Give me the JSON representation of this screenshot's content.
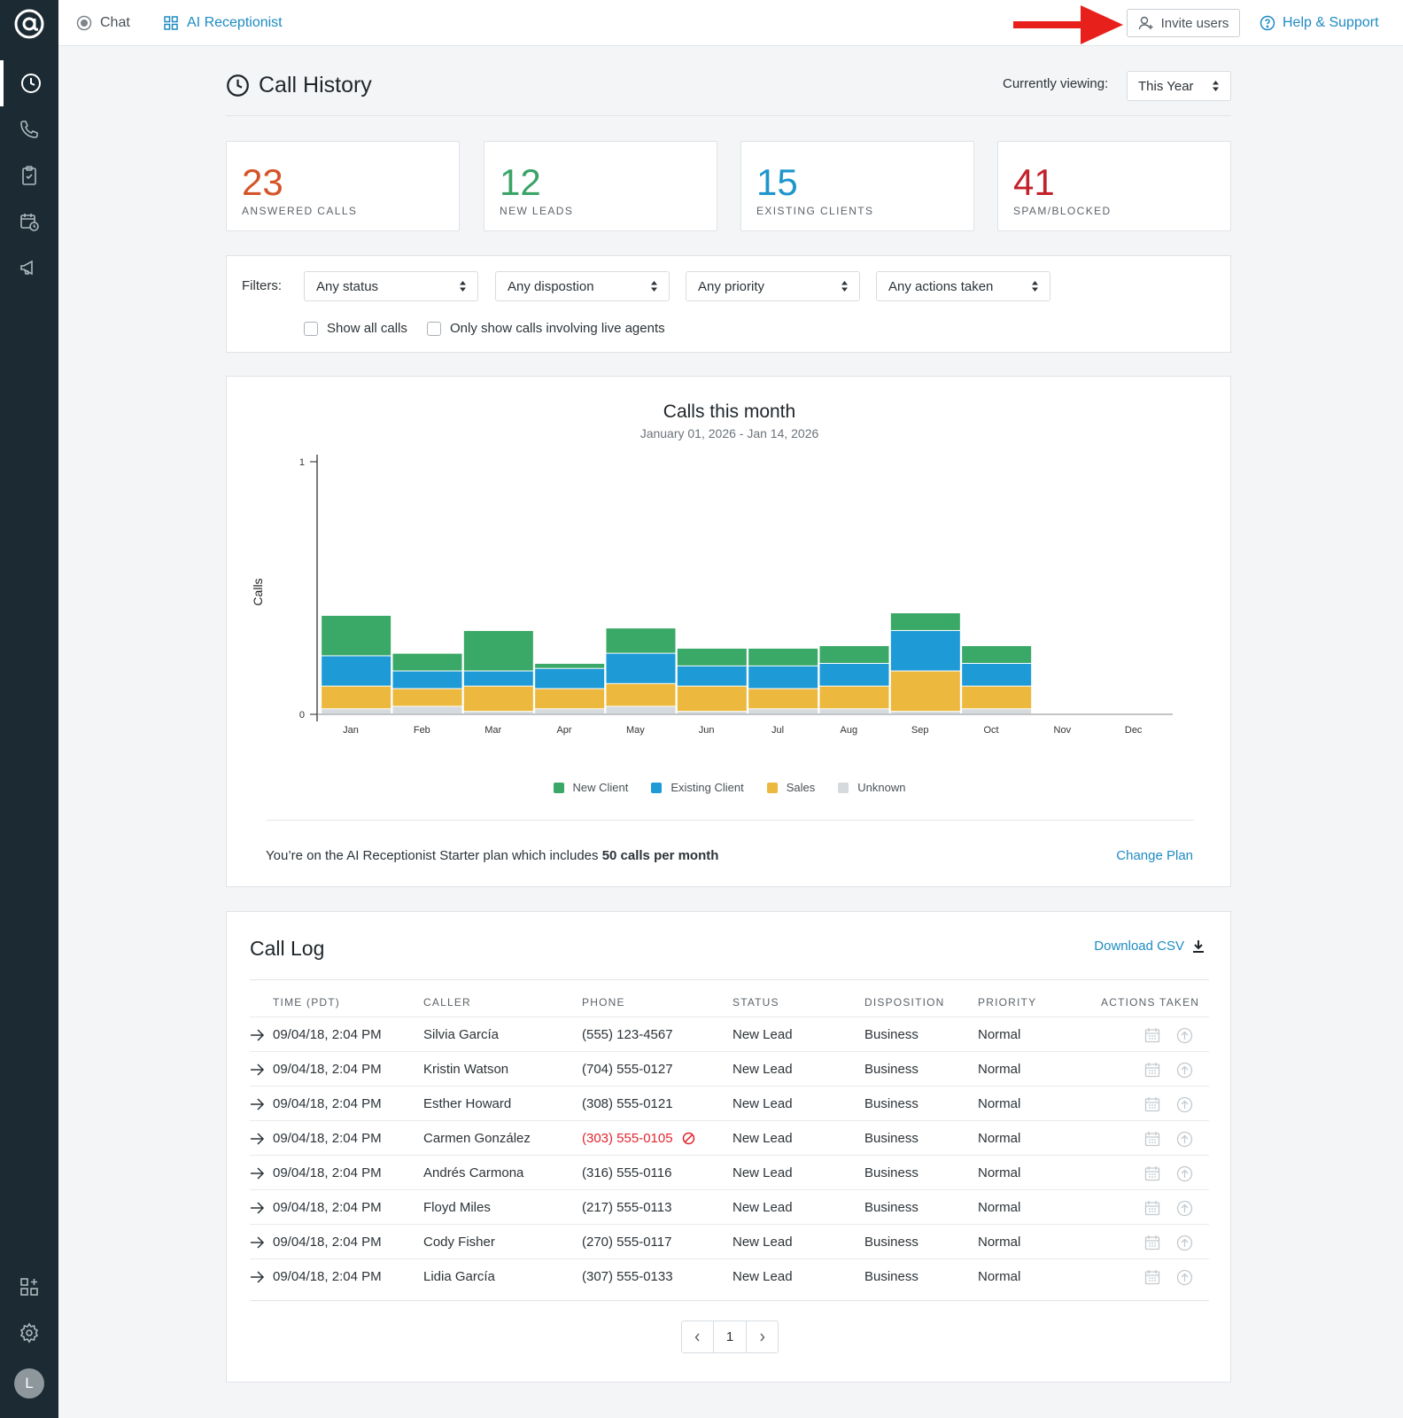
{
  "topbar": {
    "chat_label": "Chat",
    "ai_label": "AI Receptionist",
    "invite_label": "Invite users",
    "help_label": "Help & Support"
  },
  "sidebar": {
    "avatar_initial": "L",
    "items": [
      "clock-icon",
      "phone-icon",
      "clipboard-check-icon",
      "calendar-clock-icon",
      "megaphone-icon",
      "apps-icon",
      "gear-icon"
    ]
  },
  "header": {
    "title": "Call History",
    "viewing_label": "Currently viewing:",
    "viewing_value": "This Year"
  },
  "stats": [
    {
      "value": "23",
      "label": "ANSWERED CALLS",
      "color": "#d4542a"
    },
    {
      "value": "12",
      "label": "NEW LEADS",
      "color": "#3aa466"
    },
    {
      "value": "15",
      "label": "EXISTING CLIENTS",
      "color": "#1e95cc"
    },
    {
      "value": "41",
      "label": "SPAM/BLOCKED",
      "color": "#c4222a"
    }
  ],
  "filters": {
    "label": "Filters:",
    "selects": [
      "Any status",
      "Any dispostion",
      "Any priority",
      "Any actions taken"
    ],
    "checkboxes": [
      "Show all calls",
      "Only show calls involving live agents"
    ]
  },
  "chart_data": {
    "type": "bar",
    "stacked": true,
    "title": "Calls this month",
    "subtitle": "January 01, 2026 - Jan 14, 2026",
    "ylabel": "Calls",
    "xlabel": "",
    "ylim": [
      0,
      1
    ],
    "yticks": [
      "0",
      "1"
    ],
    "categories": [
      "Jan",
      "Feb",
      "Mar",
      "Apr",
      "May",
      "Jun",
      "Jul",
      "Aug",
      "Sep",
      "Oct",
      "Nov",
      "Dec"
    ],
    "series": [
      {
        "name": "Unknown",
        "color": "#d5dade",
        "values": [
          0.02,
          0.03,
          0.01,
          0.02,
          0.03,
          0.01,
          0.02,
          0.02,
          0.01,
          0.02,
          0.0,
          0.0
        ]
      },
      {
        "name": "Sales",
        "color": "#ecb83d",
        "values": [
          0.09,
          0.07,
          0.1,
          0.08,
          0.09,
          0.1,
          0.08,
          0.09,
          0.16,
          0.09,
          0.0,
          0.0
        ]
      },
      {
        "name": "Existing Client",
        "color": "#1e9bd7",
        "values": [
          0.12,
          0.07,
          0.06,
          0.08,
          0.12,
          0.08,
          0.09,
          0.09,
          0.16,
          0.09,
          0.0,
          0.0
        ]
      },
      {
        "name": "New Client",
        "color": "#3aa866",
        "values": [
          0.16,
          0.07,
          0.16,
          0.02,
          0.1,
          0.07,
          0.07,
          0.07,
          0.07,
          0.07,
          0.0,
          0.0
        ]
      }
    ],
    "legend": [
      "New Client",
      "Existing Client",
      "Sales",
      "Unknown"
    ],
    "legend_position": "bottom",
    "grid": false
  },
  "plan": {
    "text": "You’re on the AI Receptionist Starter plan which includes ",
    "bold": "50 calls per month",
    "change_label": "Change Plan"
  },
  "log": {
    "title": "Call Log",
    "download_label": "Download CSV",
    "columns": [
      "TIME (PDT)",
      "CALLER",
      "PHONE",
      "STATUS",
      "DISPOSITION",
      "PRIORITY",
      "ACTIONS TAKEN"
    ],
    "rows": [
      {
        "time": "09/04/18, 2:04 PM",
        "caller": "Silvia García",
        "phone": "(555) 123-4567",
        "status": "New Lead",
        "disposition": "Business",
        "priority": "Normal",
        "blocked": false
      },
      {
        "time": "09/04/18, 2:04 PM",
        "caller": "Kristin Watson",
        "phone": "(704) 555-0127",
        "status": "New Lead",
        "disposition": "Business",
        "priority": "Normal",
        "blocked": false
      },
      {
        "time": "09/04/18, 2:04 PM",
        "caller": "Esther Howard",
        "phone": "(308) 555-0121",
        "status": "New Lead",
        "disposition": "Business",
        "priority": "Normal",
        "blocked": false
      },
      {
        "time": "09/04/18, 2:04 PM",
        "caller": "Carmen González",
        "phone": "(303) 555-0105",
        "status": "New Lead",
        "disposition": "Business",
        "priority": "Normal",
        "blocked": true
      },
      {
        "time": "09/04/18, 2:04 PM",
        "caller": "Andrés Carmona",
        "phone": "(316) 555-0116",
        "status": "New Lead",
        "disposition": "Business",
        "priority": "Normal",
        "blocked": false
      },
      {
        "time": "09/04/18, 2:04 PM",
        "caller": "Floyd Miles",
        "phone": "(217) 555-0113",
        "status": "New Lead",
        "disposition": "Business",
        "priority": "Normal",
        "blocked": false
      },
      {
        "time": "09/04/18, 2:04 PM",
        "caller": "Cody Fisher",
        "phone": "(270) 555-0117",
        "status": "New Lead",
        "disposition": "Business",
        "priority": "Normal",
        "blocked": false
      },
      {
        "time": "09/04/18, 2:04 PM",
        "caller": "Lidia García",
        "phone": "(307) 555-0133",
        "status": "New Lead",
        "disposition": "Business",
        "priority": "Normal",
        "blocked": false
      }
    ]
  },
  "pagination": {
    "current": "1"
  },
  "colors": {
    "accent": "#1e8bc3",
    "sidebar": "#1c2b33",
    "arrow": "#e8201c"
  }
}
